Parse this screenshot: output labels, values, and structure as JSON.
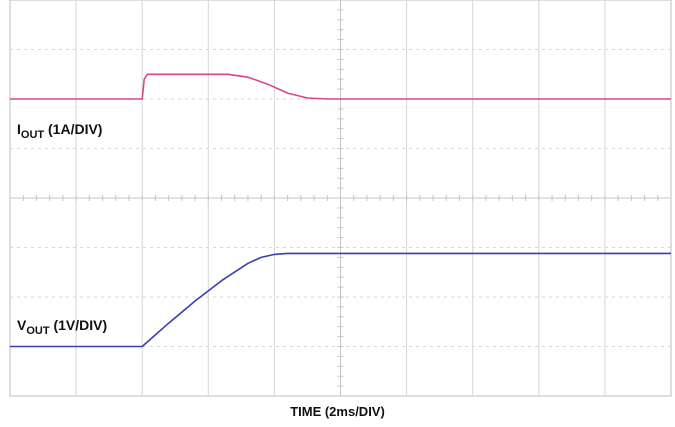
{
  "chart_data": {
    "type": "line",
    "xlabel": "TIME (2ms/DIV)",
    "grid": true,
    "divisions": {
      "x": 10,
      "y": 8
    },
    "xlim": [
      0,
      10
    ],
    "ylim": [
      0,
      8
    ],
    "series": [
      {
        "name": "IOUT (1A/DIV)",
        "label_main": "I",
        "label_sub": "OUT",
        "label_rest": " (1A/DIV)",
        "color": "#d9468f",
        "points": [
          [
            0,
            6.0
          ],
          [
            2.0,
            6.0
          ],
          [
            2.03,
            6.4
          ],
          [
            2.08,
            6.5
          ],
          [
            3.3,
            6.5
          ],
          [
            3.6,
            6.44
          ],
          [
            3.9,
            6.3
          ],
          [
            4.2,
            6.12
          ],
          [
            4.5,
            6.02
          ],
          [
            4.8,
            6.0
          ],
          [
            10,
            6.0
          ]
        ]
      },
      {
        "name": "VOUT (1V/DIV)",
        "label_main": "V",
        "label_sub": "OUT",
        "label_rest": " (1V/DIV)",
        "color": "#3a3fb0",
        "points": [
          [
            0,
            1.0
          ],
          [
            2.0,
            1.0
          ],
          [
            2.4,
            1.47
          ],
          [
            2.8,
            1.92
          ],
          [
            3.2,
            2.33
          ],
          [
            3.6,
            2.68
          ],
          [
            3.8,
            2.8
          ],
          [
            4.0,
            2.86
          ],
          [
            4.2,
            2.88
          ],
          [
            10,
            2.88
          ]
        ]
      }
    ]
  }
}
